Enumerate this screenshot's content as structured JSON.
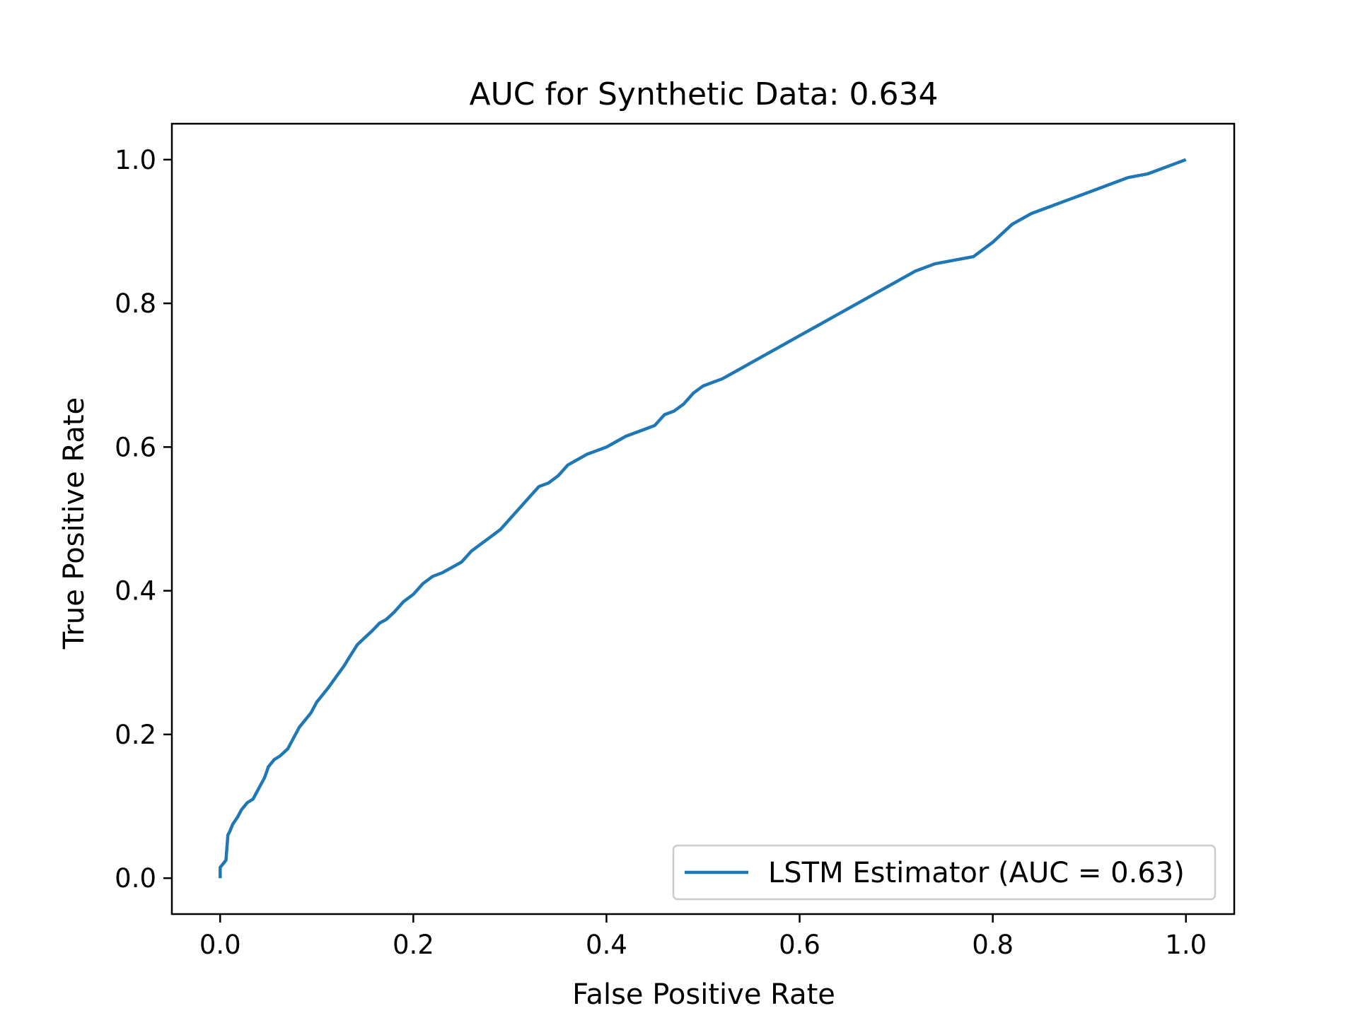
{
  "chart_data": {
    "type": "line",
    "title": "AUC for Synthetic Data: 0.634",
    "xlabel": "False Positive Rate",
    "ylabel": "True Positive Rate",
    "xlim": [
      -0.05,
      1.05
    ],
    "ylim": [
      -0.05,
      1.05
    ],
    "xticks": [
      "0.0",
      "0.2",
      "0.4",
      "0.6",
      "0.8",
      "1.0"
    ],
    "yticks": [
      "0.0",
      "0.2",
      "0.4",
      "0.6",
      "0.8",
      "1.0"
    ],
    "grid": false,
    "legend_position": "bottom-right",
    "series": [
      {
        "name": "LSTM Estimator (AUC = 0.63)",
        "color": "#1f77b4",
        "x": [
          0.0,
          0.0,
          0.003,
          0.006,
          0.008,
          0.01,
          0.013,
          0.018,
          0.022,
          0.028,
          0.034,
          0.04,
          0.046,
          0.05,
          0.056,
          0.062,
          0.07,
          0.076,
          0.082,
          0.088,
          0.094,
          0.1,
          0.106,
          0.112,
          0.12,
          0.128,
          0.135,
          0.142,
          0.15,
          0.158,
          0.165,
          0.172,
          0.18,
          0.19,
          0.2,
          0.21,
          0.22,
          0.23,
          0.25,
          0.26,
          0.27,
          0.28,
          0.29,
          0.3,
          0.31,
          0.32,
          0.33,
          0.34,
          0.35,
          0.36,
          0.38,
          0.4,
          0.42,
          0.44,
          0.45,
          0.46,
          0.47,
          0.48,
          0.49,
          0.5,
          0.52,
          0.54,
          0.56,
          0.58,
          0.6,
          0.62,
          0.64,
          0.66,
          0.68,
          0.7,
          0.72,
          0.74,
          0.76,
          0.78,
          0.8,
          0.82,
          0.84,
          0.86,
          0.88,
          0.9,
          0.92,
          0.94,
          0.96,
          0.98,
          1.0
        ],
        "y": [
          0.0,
          0.015,
          0.02,
          0.025,
          0.06,
          0.065,
          0.075,
          0.085,
          0.095,
          0.105,
          0.11,
          0.125,
          0.14,
          0.155,
          0.165,
          0.17,
          0.18,
          0.195,
          0.21,
          0.22,
          0.23,
          0.245,
          0.255,
          0.265,
          0.28,
          0.295,
          0.31,
          0.325,
          0.335,
          0.345,
          0.355,
          0.36,
          0.37,
          0.385,
          0.395,
          0.41,
          0.42,
          0.425,
          0.44,
          0.455,
          0.465,
          0.475,
          0.485,
          0.5,
          0.515,
          0.53,
          0.545,
          0.55,
          0.56,
          0.575,
          0.59,
          0.6,
          0.615,
          0.625,
          0.63,
          0.645,
          0.65,
          0.66,
          0.675,
          0.685,
          0.695,
          0.71,
          0.725,
          0.74,
          0.755,
          0.77,
          0.785,
          0.8,
          0.815,
          0.83,
          0.845,
          0.855,
          0.86,
          0.865,
          0.885,
          0.91,
          0.925,
          0.935,
          0.945,
          0.955,
          0.965,
          0.975,
          0.98,
          0.99,
          1.0
        ]
      }
    ]
  }
}
